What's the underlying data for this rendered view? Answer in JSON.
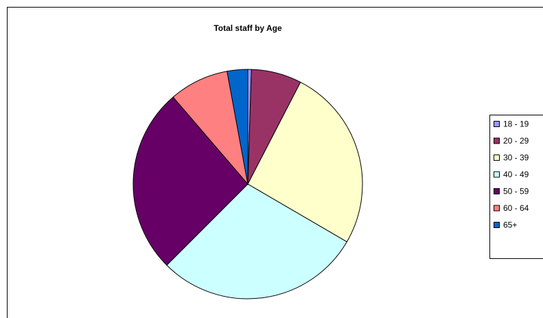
{
  "chart_data": {
    "type": "pie",
    "title": "Total staff by Age",
    "categories": [
      "18 - 19",
      "20 - 29",
      "30 - 39",
      "40 - 49",
      "50 - 59",
      "60 - 64",
      "65+"
    ],
    "values": [
      0.5,
      7.1,
      25.8,
      29.1,
      26.2,
      8.4,
      2.9
    ],
    "colors": [
      "#9999ff",
      "#993366",
      "#ffffcc",
      "#ccffff",
      "#660066",
      "#ff8080",
      "#0066cc"
    ],
    "legend": "right"
  }
}
